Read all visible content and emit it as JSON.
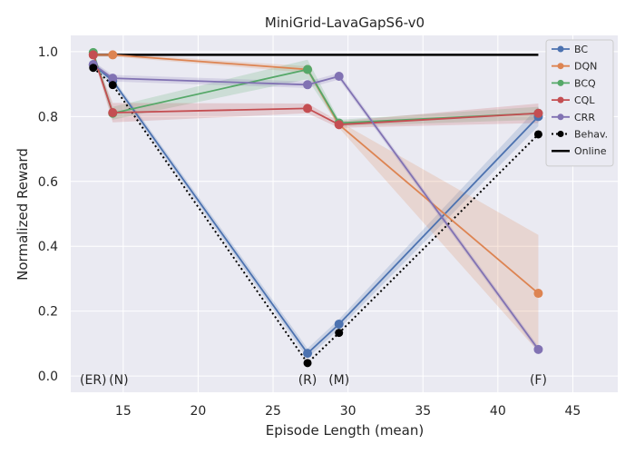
{
  "chart_data": {
    "type": "line",
    "title": "MiniGrid-LavaGapS6-v0",
    "xlabel": "Episode Length (mean)",
    "ylabel": "Normalized Reward",
    "xlim": [
      11.5,
      48.0
    ],
    "ylim": [
      -0.05,
      1.05
    ],
    "xticks": [
      "15",
      "20",
      "25",
      "30",
      "35",
      "40",
      "45"
    ],
    "yticks": [
      "0.0",
      "0.2",
      "0.4",
      "0.6",
      "0.8",
      "1.0"
    ],
    "grid": true,
    "legend_position": "top-right",
    "annotations": [
      {
        "text": "(ER)",
        "x": 13.0
      },
      {
        "text": "(N)",
        "x": 14.7
      },
      {
        "text": "(R)",
        "x": 27.3
      },
      {
        "text": "(M)",
        "x": 29.4
      },
      {
        "text": "(F)",
        "x": 42.7
      }
    ],
    "online": {
      "name": "Online",
      "color": "#000000",
      "x": [
        13.0,
        42.7
      ],
      "y": [
        0.99,
        0.99
      ]
    },
    "behavior": {
      "name": "Behav.",
      "color": "#000000",
      "x": [
        13.0,
        14.3,
        27.3,
        29.4,
        42.7
      ],
      "y": [
        0.95,
        0.897,
        0.04,
        0.133,
        0.745
      ]
    },
    "series": [
      {
        "name": "BC",
        "color": "#4c72b0",
        "x": [
          13.0,
          14.3,
          27.3,
          29.4,
          42.7
        ],
        "y": [
          0.96,
          0.91,
          0.07,
          0.16,
          0.8
        ],
        "err": [
          0.01,
          0.01,
          0.015,
          0.015,
          0.03
        ]
      },
      {
        "name": "DQN",
        "color": "#dd8452",
        "x": [
          13.0,
          14.3,
          27.3,
          29.4,
          42.7
        ],
        "y": [
          0.99,
          0.99,
          0.945,
          0.775,
          0.255
        ],
        "err": [
          0.005,
          0.005,
          0.01,
          0.01,
          0.18
        ]
      },
      {
        "name": "BCQ",
        "color": "#55a868",
        "x": [
          13.0,
          14.3,
          27.3,
          29.4,
          42.7
        ],
        "y": [
          0.997,
          0.81,
          0.945,
          0.78,
          0.81
        ],
        "err": [
          0.005,
          0.02,
          0.03,
          0.01,
          0.02
        ]
      },
      {
        "name": "CQL",
        "color": "#c44e52",
        "x": [
          13.0,
          14.3,
          27.3,
          29.4,
          42.7
        ],
        "y": [
          0.99,
          0.812,
          0.825,
          0.775,
          0.81
        ],
        "err": [
          0.005,
          0.03,
          0.015,
          0.01,
          0.03
        ]
      },
      {
        "name": "CRR",
        "color": "#8172b3",
        "x": [
          13.0,
          14.3,
          27.3,
          29.4,
          42.7
        ],
        "y": [
          0.96,
          0.918,
          0.898,
          0.924,
          0.082
        ],
        "err": [
          0.01,
          0.01,
          0.01,
          0.01,
          0.01
        ]
      }
    ]
  }
}
